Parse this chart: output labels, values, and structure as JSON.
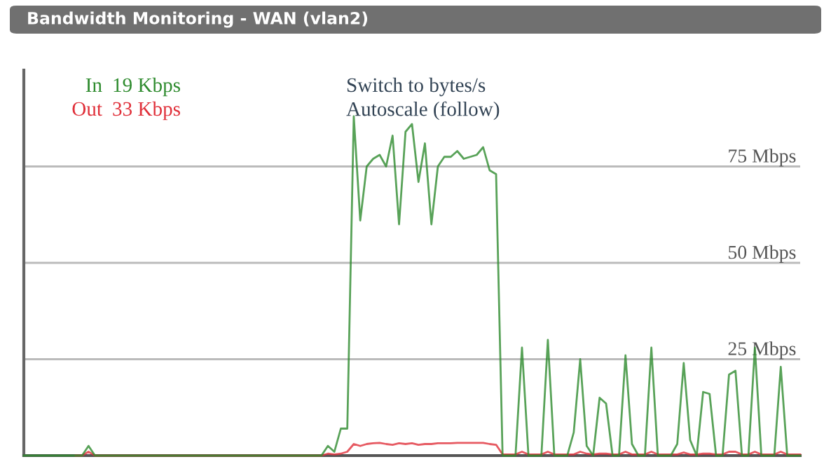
{
  "chart_data": {
    "type": "line",
    "title": "Bandwidth Monitoring - WAN (vlan2)",
    "categories": [
      null,
      null,
      null,
      null,
      null,
      null,
      null,
      null,
      null,
      null,
      null,
      null,
      null,
      null,
      null,
      null,
      null,
      null,
      null,
      null,
      null,
      null,
      null,
      null,
      null,
      null,
      null,
      null,
      null,
      null,
      null,
      null,
      null,
      null,
      null,
      null,
      null,
      null,
      null,
      null,
      null,
      null,
      null,
      null,
      null,
      null,
      null,
      null,
      null,
      null,
      null,
      null,
      null,
      null,
      null,
      null,
      null,
      null,
      null,
      null,
      null,
      null,
      null,
      null,
      null,
      null,
      null,
      null,
      null,
      null,
      null,
      null,
      null,
      null,
      null,
      null,
      null,
      null,
      null,
      null,
      null,
      null,
      null,
      null,
      null,
      null,
      null,
      null,
      null,
      null,
      null,
      null,
      null,
      null,
      null,
      null,
      null,
      null,
      null,
      null,
      null,
      null,
      null,
      null,
      null,
      null,
      null,
      null,
      null,
      null,
      null,
      null,
      null,
      null,
      null,
      null,
      null,
      null,
      null,
      null,
      null
    ],
    "series": [
      {
        "name": "In",
        "color": "#2e8b2e",
        "values": [
          0,
          0,
          0,
          0,
          0,
          0,
          0,
          0,
          0,
          0,
          2.5,
          0,
          0,
          0,
          0,
          0,
          0,
          0,
          0,
          0,
          0,
          0,
          0,
          0,
          0,
          0,
          0,
          0,
          0,
          0,
          0,
          0,
          0,
          0,
          0,
          0,
          0,
          0,
          0,
          0,
          0,
          0,
          0,
          0,
          0,
          0,
          0,
          2.5,
          1,
          7,
          7,
          88,
          61,
          75,
          77,
          78,
          75,
          83,
          60,
          84,
          86,
          71,
          81,
          60,
          75,
          77.5,
          77.5,
          79,
          77,
          77.5,
          78,
          80,
          74,
          73,
          0,
          0,
          0,
          28,
          0,
          0,
          0,
          30,
          0,
          0,
          0,
          6,
          25,
          2.5,
          0,
          15,
          13.5,
          0,
          0,
          26,
          3,
          0,
          0,
          28,
          0,
          0,
          0,
          3,
          24,
          4,
          0,
          16.5,
          16,
          0,
          0,
          21,
          22,
          0,
          0,
          28,
          0,
          0,
          0,
          23,
          0,
          0,
          0
        ]
      },
      {
        "name": "Out",
        "color": "#e0303a",
        "values": [
          null,
          null,
          null,
          null,
          null,
          null,
          null,
          null,
          0,
          0,
          1,
          0,
          0,
          0,
          0,
          0,
          0,
          0,
          0,
          0,
          0,
          0,
          0,
          0,
          0,
          0,
          0,
          0,
          0,
          0,
          0,
          0,
          0,
          0,
          0,
          0,
          0,
          0,
          0,
          0,
          0,
          0,
          0,
          0,
          0,
          0,
          0,
          0.5,
          0.3,
          0.5,
          1,
          3,
          2.5,
          3,
          3.2,
          3.3,
          3,
          2.8,
          3.2,
          3,
          3.2,
          2.8,
          3,
          3,
          3.2,
          3.2,
          3.2,
          3.3,
          3.3,
          3.3,
          3.3,
          3.3,
          3,
          2.8,
          0.3,
          0.3,
          0.3,
          1,
          0.3,
          0.3,
          0.3,
          1,
          0.3,
          0.3,
          0.3,
          0.3,
          1,
          0.5,
          0.3,
          0.5,
          0.5,
          0.3,
          0.3,
          1,
          0.3,
          0.3,
          0.3,
          1,
          0.3,
          0.3,
          0.3,
          0.3,
          0.8,
          0.3,
          0.3,
          0.5,
          0.5,
          0.3,
          0.3,
          1,
          1,
          0.3,
          0.3,
          1,
          0.3,
          0.3,
          0.3,
          1,
          0.3,
          0.3,
          0.3
        ]
      }
    ],
    "ylim": [
      0,
      100
    ],
    "yticks": [
      {
        "value": 25,
        "label": "25 Mbps"
      },
      {
        "value": 50,
        "label": "50 Mbps"
      },
      {
        "value": 75,
        "label": "75 Mbps"
      }
    ],
    "grid": "y",
    "marker": "none",
    "line_style": "solid",
    "legend": "top left",
    "annotations": [
      "19 Kbps",
      "33 Kbps",
      "Switch to bytes/s",
      "Autoscale (follow)"
    ]
  }
}
